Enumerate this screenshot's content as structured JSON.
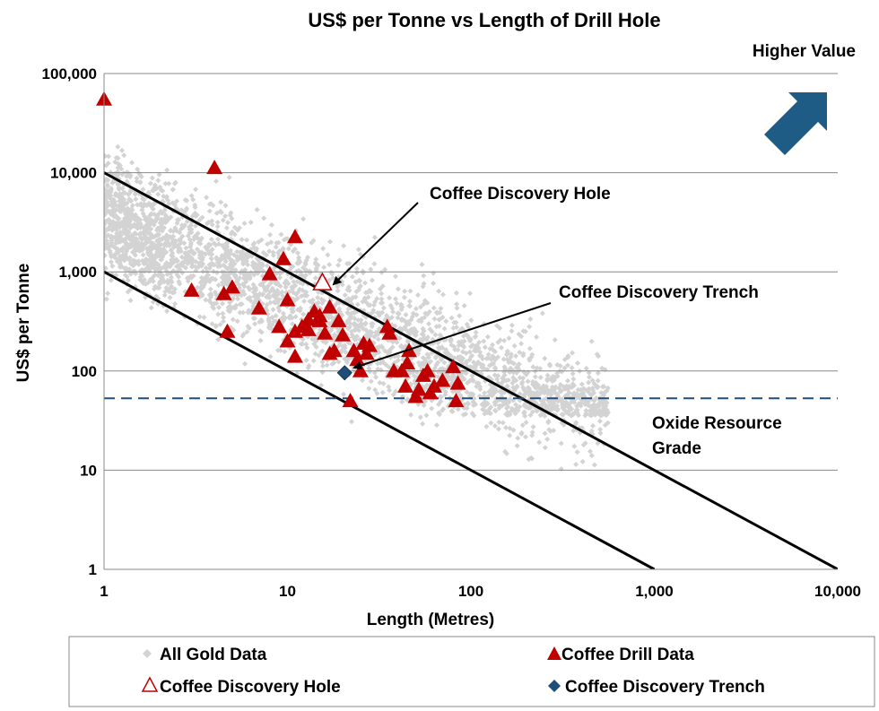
{
  "chart_data": {
    "type": "scatter",
    "title": "US$ per Tonne vs Length of Drill Hole",
    "xlabel": "Length (Metres)",
    "ylabel": "US$ per Tonne",
    "x_scale": "log",
    "y_scale": "log",
    "xlim": [
      1,
      10000
    ],
    "ylim": [
      1,
      100000
    ],
    "x_ticks": [
      1,
      10,
      100,
      1000,
      10000
    ],
    "x_tick_labels": [
      "1",
      "10",
      "100",
      "1,000",
      "10,000"
    ],
    "y_ticks": [
      1,
      10,
      100,
      1000,
      10000,
      100000
    ],
    "y_tick_labels": [
      "1",
      "10",
      "100",
      "1,000",
      "10,000",
      "100,000"
    ],
    "grid": "horizontal",
    "reference_lines": [
      {
        "points": [
          [
            1,
            10000
          ],
          [
            10000,
            1
          ]
        ],
        "style": "solid",
        "color": "#000000"
      },
      {
        "points": [
          [
            1,
            1000
          ],
          [
            1000,
            1
          ]
        ],
        "style": "solid",
        "color": "#000000"
      },
      {
        "points": [
          [
            1,
            53
          ],
          [
            10000,
            53
          ]
        ],
        "style": "dashed",
        "color": "#1F4E79"
      }
    ],
    "series": [
      {
        "name": "All Gold Data",
        "marker": "diamond",
        "color": "#D3D3D3",
        "cloud_note": "dense cloud of several thousand points, not individually digitized",
        "points": []
      },
      {
        "name": "Coffee Drill Data",
        "marker": "triangle",
        "color": "#C00000",
        "points": [
          [
            1,
            55000
          ],
          [
            4,
            11200
          ],
          [
            3,
            650
          ],
          [
            4.5,
            600
          ],
          [
            5,
            700
          ],
          [
            4.7,
            250
          ],
          [
            7,
            430
          ],
          [
            8,
            950
          ],
          [
            9.5,
            1350
          ],
          [
            10,
            520
          ],
          [
            11,
            2250
          ],
          [
            9,
            280
          ],
          [
            10,
            200
          ],
          [
            11,
            140
          ],
          [
            11,
            250
          ],
          [
            12,
            280
          ],
          [
            13,
            330
          ],
          [
            13,
            260
          ],
          [
            14,
            400
          ],
          [
            15,
            320
          ],
          [
            15,
            360
          ],
          [
            16,
            240
          ],
          [
            17,
            440
          ],
          [
            17,
            150
          ],
          [
            18,
            160
          ],
          [
            19,
            320
          ],
          [
            20,
            230
          ],
          [
            22,
            50
          ],
          [
            23,
            160
          ],
          [
            24,
            130
          ],
          [
            25,
            100
          ],
          [
            26,
            190
          ],
          [
            27,
            150
          ],
          [
            28,
            180
          ],
          [
            35,
            280
          ],
          [
            36,
            240
          ],
          [
            38,
            100
          ],
          [
            42,
            100
          ],
          [
            44,
            70
          ],
          [
            45,
            120
          ],
          [
            46,
            160
          ],
          [
            50,
            55
          ],
          [
            52,
            65
          ],
          [
            55,
            90
          ],
          [
            58,
            100
          ],
          [
            60,
            60
          ],
          [
            63,
            70
          ],
          [
            70,
            80
          ],
          [
            80,
            110
          ],
          [
            83,
            50
          ],
          [
            85,
            75
          ]
        ]
      },
      {
        "name": "Coffee Discovery Hole",
        "marker": "triangle-open",
        "color": "#C00000",
        "points": [
          [
            15.5,
            780
          ]
        ]
      },
      {
        "name": "Coffee Discovery Trench",
        "marker": "diamond",
        "color": "#1F4E79",
        "points": [
          [
            20.5,
            96
          ]
        ]
      }
    ],
    "annotations": [
      {
        "text": "Coffee Discovery Hole",
        "target": [
          15.5,
          780
        ]
      },
      {
        "text": "Coffee Discovery Trench",
        "target": [
          20.5,
          96
        ]
      },
      {
        "text": "Oxide Resource Grade"
      },
      {
        "text": "Higher Value",
        "arrow": "up-right",
        "arrow_color": "#1F5C85"
      }
    ],
    "legend": {
      "placement": "bottom",
      "entries": [
        "All Gold Data",
        "Coffee Drill Data",
        "Coffee Discovery Hole",
        "Coffee Discovery Trench"
      ]
    }
  }
}
